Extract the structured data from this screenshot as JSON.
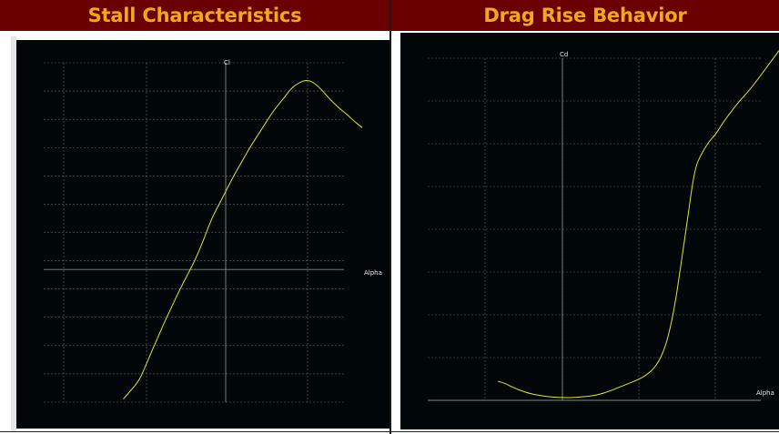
{
  "panels": [
    {
      "title": "Stall Characteristics"
    },
    {
      "title": "Drag Rise Behavior"
    }
  ],
  "colors": {
    "header_bg": "#6b0000",
    "header_text": "#f0a81c",
    "plot_bg": "#010608",
    "curve": "#e2e62a"
  },
  "chart_data": [
    {
      "type": "line",
      "title": "Stall Characteristics",
      "xlabel": "Alpha",
      "ylabel": "Cl",
      "grid": true,
      "xlim": [
        -2,
        2
      ],
      "ylim": [
        -4.3,
        6.7
      ],
      "x": [
        -1,
        -0.9,
        -0.8,
        -0.7,
        -0.6,
        -0.5,
        -0.4,
        -0.3,
        -0.2,
        -0.1,
        0,
        0.1,
        0.2,
        0.3,
        0.4,
        0.5,
        0.6,
        0.7,
        0.8,
        0.9,
        1.0,
        1.1,
        1.2,
        1.3,
        1.4,
        1.5,
        1.6,
        1.7,
        1.8,
        1.9,
        2.0
      ],
      "series": [
        {
          "values": [
            -4.2,
            -3.9,
            -3.6,
            -3.0,
            -2.4,
            -1.8,
            -1.25,
            -0.7,
            -0.2,
            0.3,
            0.9,
            1.6,
            2.1,
            2.6,
            3.1,
            3.55,
            4.0,
            4.4,
            4.8,
            5.2,
            5.5,
            5.85,
            6.05,
            6.15,
            6.05,
            5.8,
            5.5,
            5.25,
            5.05,
            4.8,
            4.6
          ]
        }
      ]
    },
    {
      "type": "line",
      "title": "Drag Rise Behavior",
      "xlabel": "Alpha",
      "ylabel": "Cd",
      "grid": true,
      "xlim": [
        -2,
        3
      ],
      "ylim": [
        0,
        9
      ],
      "x": [
        -1,
        -0.9,
        -0.8,
        -0.6,
        -0.4,
        -0.2,
        0,
        0.2,
        0.4,
        0.6,
        0.8,
        1.0,
        1.1,
        1.2,
        1.3,
        1.4,
        1.5,
        1.6,
        1.7,
        1.8,
        1.9,
        2.0,
        2.1,
        2.2,
        2.4,
        2.6,
        2.8,
        3.0
      ],
      "series": [
        {
          "values": [
            0.5,
            0.45,
            0.35,
            0.2,
            0.12,
            0.08,
            0.07,
            0.09,
            0.13,
            0.25,
            0.4,
            0.55,
            0.65,
            0.8,
            1.05,
            1.5,
            2.3,
            3.5,
            4.8,
            6.1,
            6.5,
            6.8,
            7.0,
            7.3,
            7.8,
            8.2,
            8.7,
            9.2
          ]
        }
      ]
    }
  ]
}
